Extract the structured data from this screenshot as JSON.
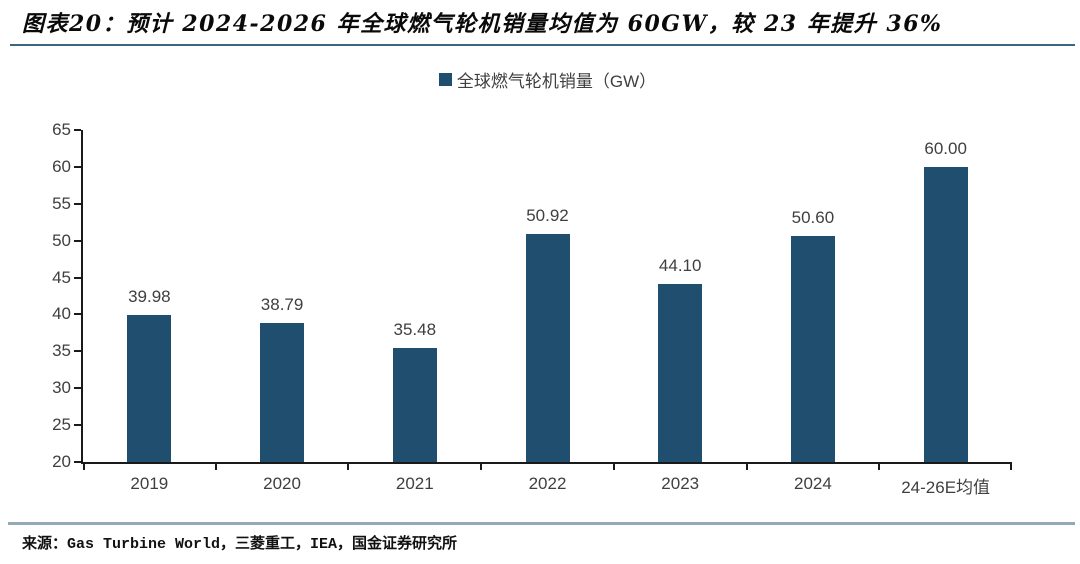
{
  "header": {
    "title": "图表20：预计 2024-2026 年全球燃气轮机销量均值为 60GW，较 23 年提升 36%"
  },
  "chart_data": {
    "type": "bar",
    "legend_label": "全球燃气轮机销量（GW）",
    "legend_position": "top-center",
    "categories": [
      "2019",
      "2020",
      "2021",
      "2022",
      "2023",
      "2024",
      "24-26E均值"
    ],
    "values": [
      39.98,
      38.79,
      35.48,
      50.92,
      44.1,
      50.6,
      60.0
    ],
    "value_labels": [
      "39.98",
      "38.79",
      "35.48",
      "50.92",
      "44.10",
      "50.60",
      "60.00"
    ],
    "ylim": [
      20,
      65
    ],
    "ytick_step": 5,
    "xlabel": "",
    "ylabel": "",
    "grid": false,
    "colors": {
      "bar": "#1F4E6E",
      "axis": "#1A1A1A",
      "tick_label": "#3F3F3F",
      "title_rule": "#3A6680",
      "footer_rule": "#93A9B7"
    }
  },
  "footer": {
    "source": "来源：Gas Turbine World，三菱重工，IEA，国金证券研究所"
  }
}
